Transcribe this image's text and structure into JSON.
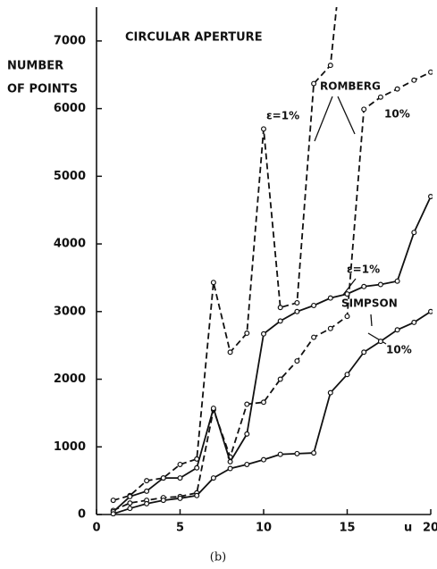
{
  "chart_data": {
    "type": "line",
    "title": "CIRCULAR APERTURE",
    "y_label": [
      "NUMBER",
      "OF POINTS"
    ],
    "x_label": "u",
    "caption": "(b)",
    "x": [
      1,
      2,
      3,
      4,
      5,
      6,
      7,
      8,
      9,
      10,
      11,
      12,
      13,
      14,
      15,
      16,
      17,
      18,
      19,
      20
    ],
    "series": [
      {
        "color": "#111111",
        "dash": true,
        "values": [
          210,
          280,
          500,
          540,
          740,
          820,
          3430,
          2400,
          2680,
          5700,
          3060,
          3130,
          6370,
          6640,
          9000,
          null,
          null,
          null,
          null,
          null
        ]
      },
      {
        "color": "#111111",
        "dash": true,
        "values": [
          60,
          170,
          210,
          250,
          265,
          320,
          1550,
          850,
          1630,
          1660,
          2000,
          2270,
          2620,
          2750,
          2930,
          5990,
          6170,
          6290,
          6420,
          6540
        ]
      },
      {
        "color": "#111111",
        "dash": false,
        "values": [
          40,
          265,
          345,
          540,
          540,
          690,
          1570,
          780,
          1190,
          2670,
          2860,
          3000,
          3090,
          3200,
          3260,
          3370,
          3400,
          3450,
          4170,
          4700
        ]
      },
      {
        "color": "#111111",
        "dash": false,
        "values": [
          10,
          90,
          160,
          210,
          240,
          280,
          540,
          680,
          740,
          810,
          890,
          900,
          910,
          1800,
          2070,
          2400,
          2560,
          2730,
          2840,
          3000
        ]
      }
    ],
    "annotations": [
      "ROMBERG",
      "ε=1%",
      "10%",
      "ε=1%",
      "SIMPSON",
      "10%"
    ],
    "xlim": [
      0,
      20
    ],
    "ylim": [
      0,
      7500
    ],
    "xticks": [
      0,
      5,
      10,
      15,
      20
    ],
    "yticks": [
      0,
      1000,
      2000,
      3000,
      4000,
      5000,
      6000,
      7000
    ],
    "grid": false
  }
}
